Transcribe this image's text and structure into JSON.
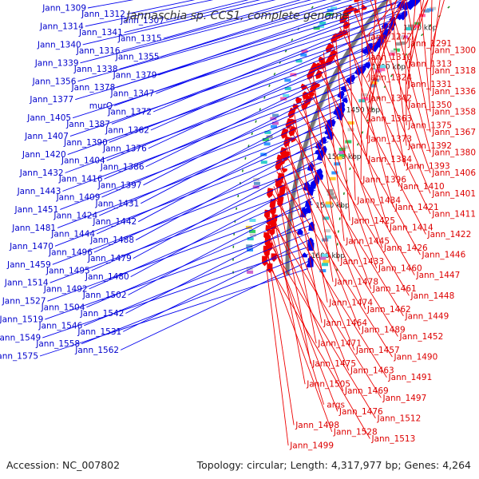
{
  "title": "Jannaschia sp. CCS1, complete genome",
  "accession": "Accession: NC_007802",
  "summary": "Topology: circular; Length: 4,317,977 bp; Genes: 4,264",
  "colors": {
    "plus_label": "#0000cc",
    "minus_label": "#dd0000",
    "plus_arrow": "#0000ee",
    "minus_arrow": "#ee0000",
    "backbone": "#777777",
    "tick": "#228822"
  },
  "scale_ticks": [
    "1250 kbp",
    "1300 kbp",
    "1350 kbp",
    "1400 kbp",
    "1450 kbp",
    "1500 kbp",
    "1550 kbp",
    "1600 kbp"
  ],
  "plus_labels": [
    "Jann_1309",
    "Jann_1312",
    "Jann_1307",
    "Jann_1314",
    "Jann_1341",
    "Jann_1315",
    "Jann_1340",
    "Jann_1316",
    "Jann_1355",
    "Jann_1339",
    "Jann_1338",
    "Jann_1379",
    "Jann_1356",
    "Jann_1378",
    "Jann_1347",
    "Jann_1377",
    "murQ",
    "Jann_1372",
    "Jann_1405",
    "Jann_1387",
    "Jann_1362",
    "Jann_1407",
    "Jann_1390",
    "Jann_1376",
    "Jann_1420",
    "Jann_1404",
    "Jann_1386",
    "Jann_1432",
    "Jann_1416",
    "Jann_1397",
    "Jann_1443",
    "Jann_1409",
    "Jann_1431",
    "Jann_1451",
    "Jann_1424",
    "Jann_1442",
    "Jann_1481",
    "Jann_1444",
    "Jann_1488",
    "Jann_1470",
    "Jann_1496",
    "Jann_1479",
    "Jann_1459",
    "Jann_1495",
    "Jann_1480",
    "Jann_1514",
    "Jann_1492",
    "Jann_1502",
    "Jann_1527",
    "Jann_1504",
    "Jann_1542",
    "Jann_1519",
    "Jann_1546",
    "Jann_1531",
    "Jann_1549",
    "Jann_1558",
    "Jann_1562",
    "Jann_1575"
  ],
  "minus_labels": [
    "Jann_1272",
    "Jann_1291",
    "Jann_1300",
    "Jann_1310",
    "Jann_1313",
    "Jann_1318",
    "Jann_1324",
    "Jann_1331",
    "Jann_1336",
    "Jann_1342",
    "Jann_1350",
    "Jann_1358",
    "Jann_1363",
    "Jann_1375",
    "Jann_1367",
    "Jann_1373",
    "Jann_1392",
    "Jann_1380",
    "Jann_1384",
    "Jann_1393",
    "Jann_1406",
    "Jann_1396",
    "Jann_1410",
    "Jann_1401",
    "Jann_1434",
    "Jann_1421",
    "Jann_1411",
    "Jann_1425",
    "Jann_1414",
    "Jann_1422",
    "Jann_1445",
    "Jann_1426",
    "Jann_1446",
    "Jann_1433",
    "Jann_1460",
    "Jann_1447",
    "Jann_1478",
    "Jann_1461",
    "Jann_1448",
    "Jann_1474",
    "Jann_1462",
    "Jann_1449",
    "Jann_1464",
    "Jann_1489",
    "Jann_1452",
    "Jann_1471",
    "Jann_1457",
    "Jann_1490",
    "Jann_1475",
    "Jann_1463",
    "Jann_1491",
    "Jann_1505",
    "Jann_1469",
    "Jann_1497",
    "args",
    "Jann_1476",
    "Jann_1512",
    "Jann_1498",
    "Jann_1528",
    "Jann_1513",
    "Jann_1499"
  ]
}
